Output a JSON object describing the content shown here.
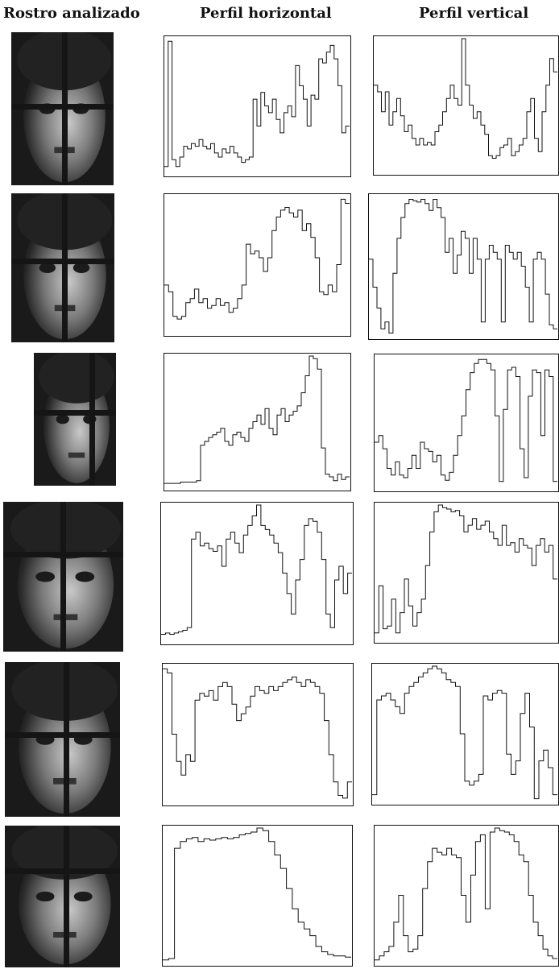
{
  "headers": {
    "face": "Rostro analizado",
    "horizontal": "Perfil horizontal",
    "vertical": "Perfil vertical"
  },
  "chart_data": [
    {
      "type": "line",
      "row": 1,
      "profile": "horizontal",
      "y": [
        0.05,
        0.98,
        0.1,
        0.05,
        0.12,
        0.2,
        0.18,
        0.22,
        0.2,
        0.25,
        0.2,
        0.18,
        0.22,
        0.15,
        0.12,
        0.18,
        0.15,
        0.2,
        0.15,
        0.12,
        0.08,
        0.1,
        0.12,
        0.55,
        0.35,
        0.6,
        0.5,
        0.45,
        0.55,
        0.4,
        0.3,
        0.45,
        0.5,
        0.42,
        0.8,
        0.65,
        0.55,
        0.35,
        0.58,
        0.55,
        0.85,
        0.82,
        0.9,
        0.95,
        0.85,
        0.65,
        0.3,
        0.35
      ]
    },
    {
      "type": "line",
      "row": 1,
      "profile": "vertical",
      "y": [
        0.65,
        0.6,
        0.45,
        0.6,
        0.35,
        0.45,
        0.55,
        0.42,
        0.3,
        0.35,
        0.25,
        0.2,
        0.25,
        0.2,
        0.22,
        0.2,
        0.3,
        0.35,
        0.45,
        0.55,
        0.65,
        0.55,
        0.5,
        1.0,
        0.65,
        0.5,
        0.4,
        0.45,
        0.35,
        0.28,
        0.12,
        0.1,
        0.12,
        0.18,
        0.2,
        0.25,
        0.12,
        0.15,
        0.2,
        0.25,
        0.45,
        0.55,
        0.25,
        0.15,
        0.45,
        0.65,
        0.85,
        0.75
      ]
    },
    {
      "type": "line",
      "row": 2,
      "profile": "horizontal",
      "y": [
        0.35,
        0.3,
        0.12,
        0.1,
        0.12,
        0.22,
        0.25,
        0.32,
        0.22,
        0.25,
        0.18,
        0.2,
        0.25,
        0.2,
        0.22,
        0.15,
        0.18,
        0.25,
        0.35,
        0.65,
        0.58,
        0.6,
        0.55,
        0.45,
        0.55,
        0.75,
        0.85,
        0.9,
        0.92,
        0.88,
        0.85,
        0.9,
        0.75,
        0.8,
        0.7,
        0.55,
        0.3,
        0.28,
        0.35,
        0.3,
        0.5,
        0.98,
        0.95
      ]
    },
    {
      "type": "line",
      "row": 2,
      "profile": "vertical",
      "y": [
        0.55,
        0.35,
        0.2,
        0.05,
        0.1,
        0.02,
        0.45,
        0.7,
        0.85,
        0.95,
        0.98,
        0.97,
        0.96,
        0.98,
        0.95,
        0.9,
        0.98,
        0.92,
        0.85,
        0.6,
        0.7,
        0.45,
        0.58,
        0.75,
        0.7,
        0.45,
        0.7,
        0.55,
        0.1,
        0.55,
        0.65,
        0.6,
        0.55,
        0.1,
        0.65,
        0.6,
        0.55,
        0.6,
        0.5,
        0.35,
        0.1,
        0.55,
        0.6,
        0.55,
        0.3,
        0.08,
        0.05
      ]
    },
    {
      "type": "line",
      "row": 3,
      "profile": "horizontal",
      "y": [
        0.03,
        0.03,
        0.03,
        0.03,
        0.04,
        0.04,
        0.04,
        0.04,
        0.05,
        0.32,
        0.35,
        0.38,
        0.4,
        0.42,
        0.45,
        0.35,
        0.32,
        0.4,
        0.42,
        0.38,
        0.35,
        0.45,
        0.5,
        0.55,
        0.48,
        0.6,
        0.45,
        0.4,
        0.55,
        0.6,
        0.5,
        0.55,
        0.58,
        0.62,
        0.72,
        0.85,
        1.0,
        0.98,
        0.9,
        0.3,
        0.1,
        0.08,
        0.05,
        0.1,
        0.06,
        0.08
      ]
    },
    {
      "type": "line",
      "row": 3,
      "profile": "vertical",
      "y": [
        0.35,
        0.4,
        0.3,
        0.15,
        0.1,
        0.2,
        0.1,
        0.08,
        0.15,
        0.25,
        0.15,
        0.35,
        0.3,
        0.28,
        0.2,
        0.25,
        0.1,
        0.06,
        0.12,
        0.25,
        0.4,
        0.55,
        0.75,
        0.88,
        0.95,
        0.98,
        0.98,
        0.95,
        0.9,
        0.55,
        0.05,
        0.6,
        0.9,
        0.92,
        0.85,
        0.3,
        0.08,
        0.7,
        0.9,
        0.88,
        0.4,
        0.9,
        0.85,
        0.05
      ]
    },
    {
      "type": "line",
      "row": 4,
      "profile": "horizontal",
      "y": [
        0.05,
        0.06,
        0.05,
        0.06,
        0.07,
        0.08,
        0.1,
        0.75,
        0.8,
        0.7,
        0.72,
        0.68,
        0.66,
        0.7,
        0.55,
        0.75,
        0.8,
        0.72,
        0.65,
        0.78,
        0.85,
        0.92,
        1.0,
        0.85,
        0.82,
        0.78,
        0.72,
        0.65,
        0.5,
        0.35,
        0.2,
        0.45,
        0.6,
        0.85,
        0.9,
        0.88,
        0.8,
        0.6,
        0.2,
        0.1,
        0.45,
        0.55,
        0.35,
        0.5
      ]
    },
    {
      "type": "line",
      "row": 4,
      "profile": "vertical",
      "y": [
        0.05,
        0.4,
        0.08,
        0.1,
        0.3,
        0.05,
        0.2,
        0.45,
        0.25,
        0.1,
        0.2,
        0.3,
        0.55,
        0.8,
        0.95,
        1.0,
        0.98,
        0.97,
        0.95,
        0.96,
        0.92,
        0.8,
        0.85,
        0.9,
        0.82,
        0.85,
        0.88,
        0.8,
        0.75,
        0.7,
        0.85,
        0.7,
        0.72,
        0.65,
        0.75,
        0.7,
        0.68,
        0.55,
        0.7,
        0.75,
        0.65,
        0.7,
        0.45
      ]
    },
    {
      "type": "line",
      "row": 5,
      "profile": "horizontal",
      "y": [
        0.98,
        0.95,
        0.5,
        0.3,
        0.2,
        0.35,
        0.3,
        0.75,
        0.8,
        0.78,
        0.82,
        0.75,
        0.85,
        0.88,
        0.85,
        0.72,
        0.6,
        0.65,
        0.7,
        0.78,
        0.85,
        0.82,
        0.8,
        0.85,
        0.82,
        0.85,
        0.88,
        0.9,
        0.92,
        0.88,
        0.85,
        0.9,
        0.88,
        0.85,
        0.8,
        0.6,
        0.35,
        0.15,
        0.05,
        0.03,
        0.15
      ]
    },
    {
      "type": "line",
      "row": 5,
      "profile": "vertical",
      "y": [
        0.05,
        0.75,
        0.78,
        0.8,
        0.75,
        0.7,
        0.65,
        0.8,
        0.85,
        0.88,
        0.92,
        0.95,
        0.98,
        1.0,
        0.98,
        0.95,
        0.9,
        0.88,
        0.85,
        0.5,
        0.15,
        0.12,
        0.15,
        0.2,
        0.78,
        0.75,
        0.8,
        0.82,
        0.8,
        0.35,
        0.2,
        0.3,
        0.65,
        0.8,
        0.55,
        0.02,
        0.3,
        0.38,
        0.25,
        0.05
      ]
    },
    {
      "type": "line",
      "row": 6,
      "profile": "horizontal",
      "y": [
        0.02,
        0.03,
        0.85,
        0.9,
        0.92,
        0.93,
        0.9,
        0.92,
        0.91,
        0.92,
        0.93,
        0.92,
        0.93,
        0.95,
        0.96,
        0.97,
        1.0,
        0.98,
        0.9,
        0.8,
        0.7,
        0.55,
        0.4,
        0.3,
        0.25,
        0.2,
        0.12,
        0.08,
        0.06,
        0.05,
        0.05,
        0.04
      ]
    },
    {
      "type": "line",
      "row": 6,
      "profile": "vertical",
      "y": [
        0.02,
        0.05,
        0.08,
        0.12,
        0.3,
        0.5,
        0.2,
        0.08,
        0.1,
        0.2,
        0.55,
        0.75,
        0.85,
        0.82,
        0.8,
        0.85,
        0.8,
        0.78,
        0.5,
        0.3,
        0.65,
        0.9,
        0.95,
        0.4,
        0.97,
        1.0,
        0.98,
        0.97,
        0.95,
        0.9,
        0.8,
        0.75,
        0.5,
        0.3,
        0.2,
        0.1,
        0.05,
        0.03
      ]
    }
  ]
}
